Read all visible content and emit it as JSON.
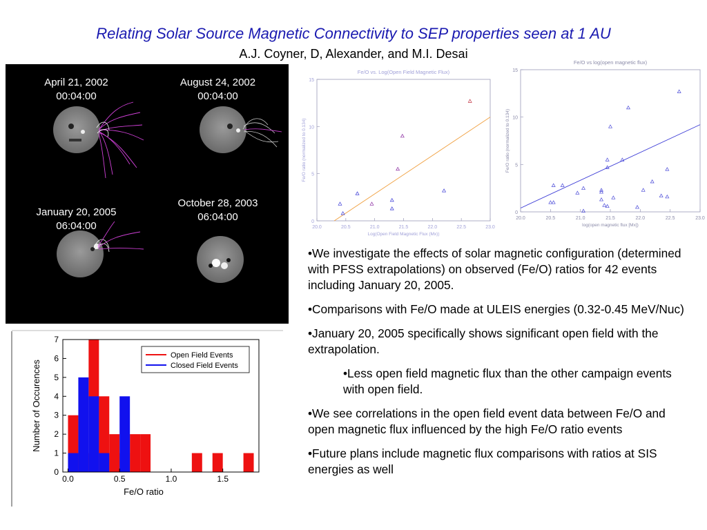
{
  "title": "Relating Solar Source Magnetic Connectivity to SEP properties seen at 1 AU",
  "authors": "A.J. Coyner, D, Alexander, and M.I. Desai",
  "events": [
    {
      "date": "April 21, 2002",
      "time": "00:04:00"
    },
    {
      "date": "August 24, 2002",
      "time": "00:04:00"
    },
    {
      "date": "January 20, 2005",
      "time": "06:04:00"
    },
    {
      "date": "October  28, 2003",
      "time": "06:04:00"
    }
  ],
  "bullets": [
    "•We investigate the effects of solar magnetic configuration (determined with PFSS extrapolations) on observed (Fe/O) ratios for 42 events including January 20, 2005.",
    "•Comparisons with Fe/O made at ULEIS energies (0.32-0.45 MeV/Nuc)",
    "•January 20, 2005 specifically shows significant open field with the extrapolation.",
    "•Less open field magnetic flux than the other campaign events with open field.",
    "•We see correlations in the open field event data between Fe/O and open magnetic flux influenced by the high Fe/O ratio events",
    "•Future plans include magnetic flux comparisons with ratios at SIS energies as well"
  ],
  "chart_data": [
    {
      "type": "scatter",
      "title": "Fe/O vs. Log(Open Field Magnetic Flux)",
      "xlabel": "Log(Open Field Magnetic Flux (Mx))",
      "ylabel": "Fe/O ratio (normalized to 0.134)",
      "xlim": [
        20.0,
        23.0
      ],
      "ylim": [
        0,
        15
      ],
      "xticks": [
        "20.0",
        "20.5",
        "21.0",
        "21.5",
        "22.0",
        "22.5",
        "23.0"
      ],
      "yticks": [
        "0",
        "5",
        "10",
        "15"
      ],
      "points": [
        {
          "x": 20.4,
          "y": 1.8,
          "color": "#3a3ad6"
        },
        {
          "x": 20.45,
          "y": 0.8,
          "color": "#3a3ad6"
        },
        {
          "x": 20.7,
          "y": 2.9,
          "color": "#3a3ad6"
        },
        {
          "x": 20.95,
          "y": 1.8,
          "color": "#8a2aa0"
        },
        {
          "x": 21.3,
          "y": 2.2,
          "color": "#3a3ad6"
        },
        {
          "x": 21.3,
          "y": 1.3,
          "color": "#3a3ad6"
        },
        {
          "x": 21.4,
          "y": 5.5,
          "color": "#8a2aa0"
        },
        {
          "x": 21.48,
          "y": 9.0,
          "color": "#8a2aa0"
        },
        {
          "x": 22.2,
          "y": 3.2,
          "color": "#3a3ad6"
        },
        {
          "x": 22.65,
          "y": 12.7,
          "color": "#c03040"
        }
      ],
      "fit": {
        "x": [
          20.3,
          23.0
        ],
        "y": [
          0.0,
          11.0
        ],
        "color": "#f0a040"
      },
      "grid": false
    },
    {
      "type": "scatter",
      "title": "Fe/O vs log(open magnetic flux)",
      "xlabel": "log(open magnetic flux [Mx])",
      "ylabel": "Fe/O ratio (normalized to 0.134)",
      "xlim": [
        20.0,
        23.0
      ],
      "ylim": [
        0,
        15
      ],
      "xticks": [
        "20.0",
        "20.5",
        "21.0",
        "21.5",
        "22.0",
        "22.5",
        "23.0"
      ],
      "yticks": [
        "0",
        "5",
        "10",
        "15"
      ],
      "points": [
        {
          "x": 20.5,
          "y": 1.0
        },
        {
          "x": 20.55,
          "y": 1.0
        },
        {
          "x": 20.55,
          "y": 2.8
        },
        {
          "x": 20.7,
          "y": 2.8
        },
        {
          "x": 20.95,
          "y": 2.0
        },
        {
          "x": 21.05,
          "y": 2.5
        },
        {
          "x": 21.05,
          "y": 0.1
        },
        {
          "x": 21.35,
          "y": 2.3
        },
        {
          "x": 21.35,
          "y": 2.1
        },
        {
          "x": 21.35,
          "y": 1.3
        },
        {
          "x": 21.4,
          "y": 0.7
        },
        {
          "x": 21.45,
          "y": 5.5
        },
        {
          "x": 21.45,
          "y": 4.7
        },
        {
          "x": 21.45,
          "y": 0.6
        },
        {
          "x": 21.5,
          "y": 9.0
        },
        {
          "x": 21.55,
          "y": 1.5
        },
        {
          "x": 21.7,
          "y": 5.5
        },
        {
          "x": 21.8,
          "y": 11.0
        },
        {
          "x": 21.95,
          "y": 0.5
        },
        {
          "x": 22.05,
          "y": 2.3
        },
        {
          "x": 22.2,
          "y": 3.2
        },
        {
          "x": 22.35,
          "y": 1.7
        },
        {
          "x": 22.45,
          "y": 1.6
        },
        {
          "x": 22.45,
          "y": 4.5
        },
        {
          "x": 22.65,
          "y": 12.7
        }
      ],
      "point_color": "#4a4ad8",
      "fit": {
        "x": [
          20.0,
          23.0
        ],
        "y": [
          0.4,
          9.2
        ],
        "color": "#3a3ad6"
      },
      "grid": false
    },
    {
      "type": "bar",
      "title": "",
      "xlabel": "Fe/O ratio",
      "ylabel": "Number of Occurences",
      "xlim": [
        -0.05,
        1.85
      ],
      "ylim": [
        0,
        7
      ],
      "xticks": [
        "0.0",
        "0.5",
        "1.0",
        "1.5"
      ],
      "yticks": [
        "0",
        "1",
        "2",
        "3",
        "4",
        "5",
        "6",
        "7"
      ],
      "legend": "top-right",
      "bin_width": 0.1,
      "series": [
        {
          "name": "Open Field Events",
          "color": "#ee1111",
          "bins": [
            {
              "x": 0.0,
              "v": 3
            },
            {
              "x": 0.1,
              "v": 1
            },
            {
              "x": 0.2,
              "v": 7
            },
            {
              "x": 0.3,
              "v": 4
            },
            {
              "x": 0.4,
              "v": 2
            },
            {
              "x": 0.5,
              "v": 1
            },
            {
              "x": 0.6,
              "v": 2
            },
            {
              "x": 0.7,
              "v": 2
            },
            {
              "x": 1.2,
              "v": 1
            },
            {
              "x": 1.4,
              "v": 1
            },
            {
              "x": 1.7,
              "v": 1
            }
          ]
        },
        {
          "name": "Closed Field Events",
          "color": "#1111ee",
          "bins": [
            {
              "x": 0.0,
              "v": 1
            },
            {
              "x": 0.1,
              "v": 5
            },
            {
              "x": 0.2,
              "v": 4
            },
            {
              "x": 0.3,
              "v": 1
            },
            {
              "x": 0.5,
              "v": 4
            }
          ]
        }
      ]
    }
  ]
}
